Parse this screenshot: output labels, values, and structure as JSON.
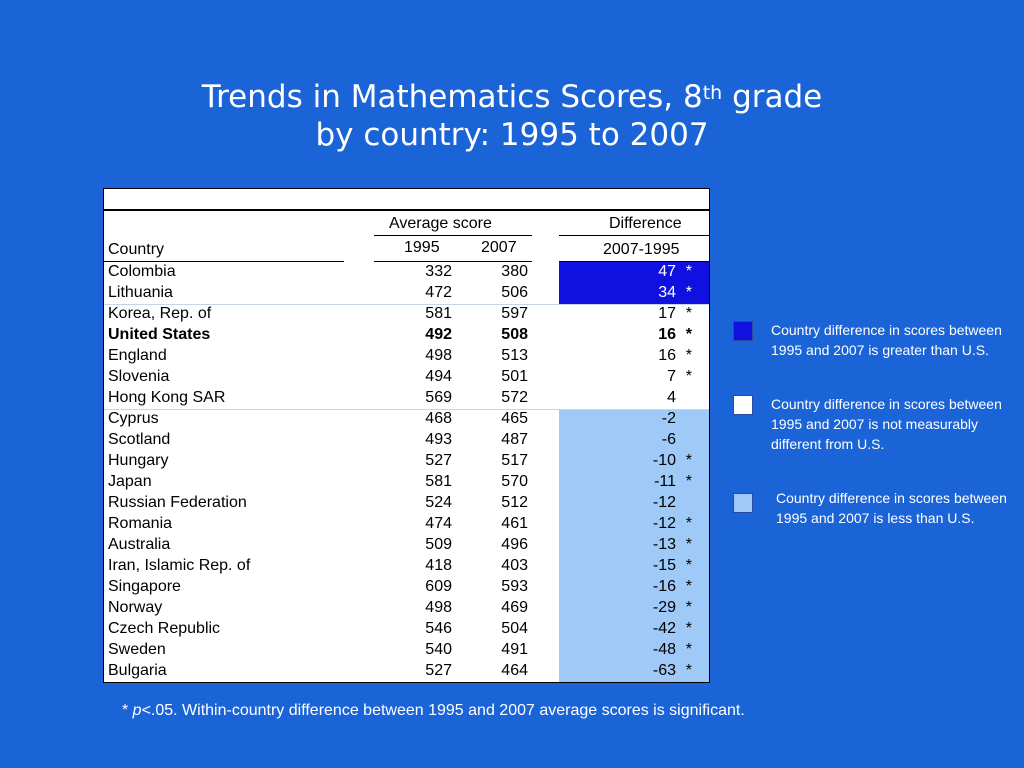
{
  "title": {
    "line1_a": "Trends in Mathematics Scores, 8",
    "line1_sup": "th",
    "line1_b": " grade",
    "line2": "by country: 1995 to 2007"
  },
  "table": {
    "header_avg": "Average score",
    "header_diff": "Difference",
    "header_country": "Country",
    "header_1995": "1995",
    "header_2007": "2007",
    "header_diffyears": "2007-1995",
    "rows": [
      {
        "country": "Colombia",
        "y1995": "332",
        "y2007": "380",
        "diff": "47",
        "star": "*",
        "group": "greater",
        "bold": false
      },
      {
        "country": "Lithuania",
        "y1995": "472",
        "y2007": "506",
        "diff": "34",
        "star": "*",
        "group": "greater",
        "bold": false
      },
      {
        "country": "Korea, Rep. of",
        "y1995": "581",
        "y2007": "597",
        "diff": "17",
        "star": "*",
        "group": "same",
        "bold": false
      },
      {
        "country": "United States",
        "y1995": "492",
        "y2007": "508",
        "diff": "16",
        "star": "*",
        "group": "same",
        "bold": true
      },
      {
        "country": "England",
        "y1995": "498",
        "y2007": "513",
        "diff": "16",
        "star": "*",
        "group": "same",
        "bold": false
      },
      {
        "country": "Slovenia",
        "y1995": "494",
        "y2007": "501",
        "diff": "7",
        "star": "*",
        "group": "same",
        "bold": false
      },
      {
        "country": "Hong Kong SAR",
        "y1995": "569",
        "y2007": "572",
        "diff": "4",
        "star": "",
        "group": "same",
        "bold": false
      },
      {
        "country": "Cyprus",
        "y1995": "468",
        "y2007": "465",
        "diff": "-2",
        "star": "",
        "group": "less",
        "bold": false
      },
      {
        "country": "Scotland",
        "y1995": "493",
        "y2007": "487",
        "diff": "-6",
        "star": "",
        "group": "less",
        "bold": false
      },
      {
        "country": "Hungary",
        "y1995": "527",
        "y2007": "517",
        "diff": "-10",
        "star": "*",
        "group": "less",
        "bold": false
      },
      {
        "country": "Japan",
        "y1995": "581",
        "y2007": "570",
        "diff": "-11",
        "star": "*",
        "group": "less",
        "bold": false
      },
      {
        "country": "Russian Federation",
        "y1995": "524",
        "y2007": "512",
        "diff": "-12",
        "star": "",
        "group": "less",
        "bold": false
      },
      {
        "country": "Romania",
        "y1995": "474",
        "y2007": "461",
        "diff": "-12",
        "star": "*",
        "group": "less",
        "bold": false
      },
      {
        "country": "Australia",
        "y1995": "509",
        "y2007": "496",
        "diff": "-13",
        "star": "*",
        "group": "less",
        "bold": false
      },
      {
        "country": "Iran, Islamic Rep. of",
        "y1995": "418",
        "y2007": "403",
        "diff": "-15",
        "star": "*",
        "group": "less",
        "bold": false
      },
      {
        "country": "Singapore",
        "y1995": "609",
        "y2007": "593",
        "diff": "-16",
        "star": "*",
        "group": "less",
        "bold": false
      },
      {
        "country": "Norway",
        "y1995": "498",
        "y2007": "469",
        "diff": "-29",
        "star": "*",
        "group": "less",
        "bold": false
      },
      {
        "country": "Czech Republic",
        "y1995": "546",
        "y2007": "504",
        "diff": "-42",
        "star": "*",
        "group": "less",
        "bold": false
      },
      {
        "country": "Sweden",
        "y1995": "540",
        "y2007": "491",
        "diff": "-48",
        "star": "*",
        "group": "less",
        "bold": false
      },
      {
        "country": "Bulgaria",
        "y1995": "527",
        "y2007": "464",
        "diff": "-63",
        "star": "*",
        "group": "less",
        "bold": false
      }
    ]
  },
  "colors": {
    "background": "#1a64d8",
    "greater": "#1010e0",
    "same": "#ffffff",
    "less": "#9fc9f7"
  },
  "legend": {
    "greater": "Country difference in scores between 1995 and 2007 is greater than U.S.",
    "same": "Country difference in scores between 1995 and 2007 is not measurably different from U.S.",
    "less": "Country difference in scores between 1995 and 2007 is less than U.S."
  },
  "footnote": {
    "star": "* ",
    "p": "p",
    "text": "<.05. Within-country difference between 1995 and 2007 average scores is significant."
  }
}
